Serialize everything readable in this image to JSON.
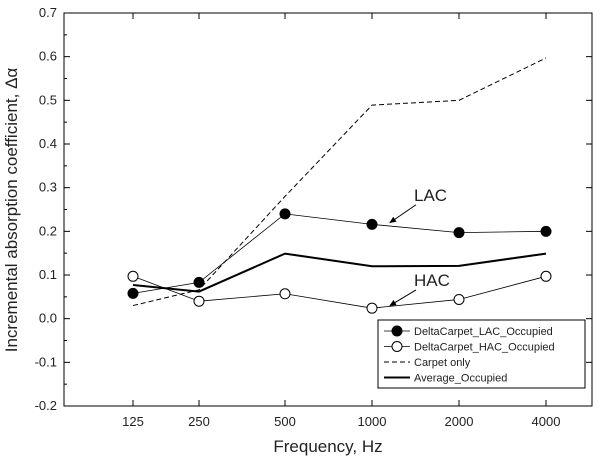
{
  "chart_data": {
    "type": "line",
    "title": "",
    "xlabel": "Frequency, Hz",
    "ylabel": "Incremental absorption coefficient, Δα",
    "categories": [
      "125",
      "250",
      "500",
      "1000",
      "2000",
      "4000"
    ],
    "ylim": [
      -0.2,
      0.7
    ],
    "yticks": [
      -0.2,
      -0.1,
      0.0,
      0.1,
      0.2,
      0.3,
      0.4,
      0.5,
      0.6,
      0.7
    ],
    "ytick_labels": [
      "-0.2",
      "-0.1",
      "0.0",
      "0.1",
      "0.2",
      "0.3",
      "0.4",
      "0.5",
      "0.6",
      "0.7"
    ],
    "grid": false,
    "legend_position": "bottom-right",
    "series": [
      {
        "name": "DeltaCarpet_LAC_Occupied",
        "style": "filled-circle",
        "color": "#000000",
        "values": [
          0.058,
          0.083,
          0.24,
          0.216,
          0.197,
          0.2
        ]
      },
      {
        "name": "DeltaCarpet_HAC_Occupied",
        "style": "open-circle",
        "color": "#000000",
        "values": [
          0.097,
          0.04,
          0.057,
          0.024,
          0.044,
          0.097
        ]
      },
      {
        "name": "Carpet only",
        "style": "dashed",
        "color": "#000000",
        "values": [
          0.03,
          0.066,
          0.28,
          0.489,
          0.5,
          0.597
        ]
      },
      {
        "name": "Average_Occupied",
        "style": "thick",
        "color": "#000000",
        "values": [
          0.077,
          0.062,
          0.149,
          0.12,
          0.121,
          0.149
        ]
      }
    ],
    "annotations": [
      {
        "text": "LAC",
        "label_x": 1000,
        "label_y": 0.27,
        "arrow_to": [
          1000,
          0.22
        ]
      },
      {
        "text": "HAC",
        "label_x": 1000,
        "label_y": 0.075,
        "arrow_to": [
          1000,
          0.03
        ]
      }
    ]
  }
}
